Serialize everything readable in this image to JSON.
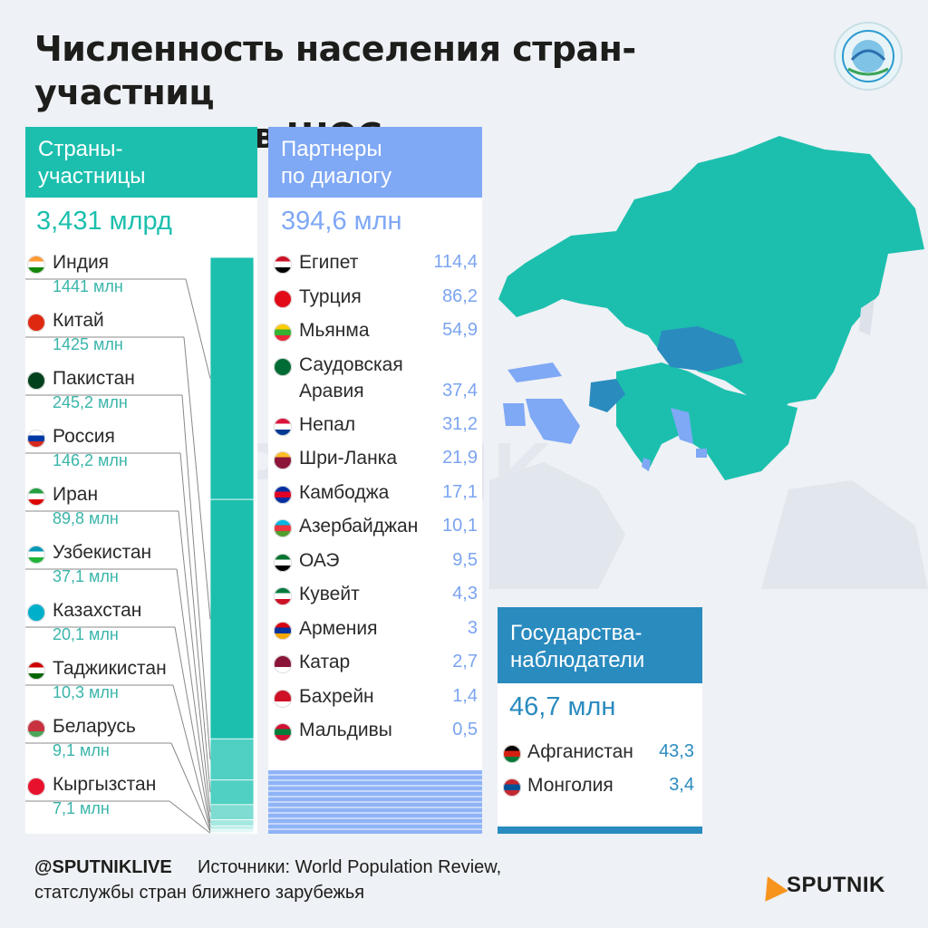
{
  "title_line1": "Численность населения стран-участниц",
  "title_line2": "и партнеров ШОС",
  "members": {
    "heading_line1": "Страны-",
    "heading_line2": "участницы",
    "total": "3,431 млрд",
    "color": "#1cbfae",
    "items": [
      {
        "name": "Индия",
        "label": "1441 млн",
        "value": 1441,
        "flag": "india-flag-icon"
      },
      {
        "name": "Китай",
        "label": "1425 млн",
        "value": 1425,
        "flag": "china-flag-icon"
      },
      {
        "name": "Пакистан",
        "label": "245,2 млн",
        "value": 245.2,
        "flag": "pakistan-flag-icon"
      },
      {
        "name": "Россия",
        "label": "146,2 млн",
        "value": 146.2,
        "flag": "russia-flag-icon"
      },
      {
        "name": "Иран",
        "label": "89,8 млн",
        "value": 89.8,
        "flag": "iran-flag-icon"
      },
      {
        "name": "Узбекистан",
        "label": "37,1 млн",
        "value": 37.1,
        "flag": "uzbekistan-flag-icon"
      },
      {
        "name": "Казахстан",
        "label": "20,1 млн",
        "value": 20.1,
        "flag": "kazakhstan-flag-icon"
      },
      {
        "name": "Таджикистан",
        "label": "10,3 млн",
        "value": 10.3,
        "flag": "tajikistan-flag-icon"
      },
      {
        "name": "Беларусь",
        "label": "9,1 млн",
        "value": 9.1,
        "flag": "belarus-flag-icon"
      },
      {
        "name": "Кыргызстан",
        "label": "7,1 млн",
        "value": 7.1,
        "flag": "kyrgyzstan-flag-icon"
      }
    ]
  },
  "partners": {
    "heading_line1": "Партнеры",
    "heading_line2": "по диалогу",
    "total": "394,6 млн",
    "color": "#7fa8f5",
    "items": [
      {
        "name": "Египет",
        "label": "114,4",
        "flag": "egypt-flag-icon"
      },
      {
        "name": "Турция",
        "label": "86,2",
        "flag": "turkey-flag-icon"
      },
      {
        "name": "Мьянма",
        "label": "54,9",
        "flag": "myanmar-flag-icon"
      },
      {
        "name": "Саудовская",
        "name2": "Аравия",
        "label": "37,4",
        "flag": "saudi-arabia-flag-icon"
      },
      {
        "name": "Непал",
        "label": "31,2",
        "flag": "nepal-flag-icon"
      },
      {
        "name": "Шри-Ланка",
        "label": "21,9",
        "flag": "sri-lanka-flag-icon"
      },
      {
        "name": "Камбоджа",
        "label": "17,1",
        "flag": "cambodia-flag-icon"
      },
      {
        "name": "Азербайджан",
        "label": "10,1",
        "flag": "azerbaijan-flag-icon"
      },
      {
        "name": "ОАЭ",
        "label": "9,5",
        "flag": "uae-flag-icon"
      },
      {
        "name": "Кувейт",
        "label": "4,3",
        "flag": "kuwait-flag-icon"
      },
      {
        "name": "Армения",
        "label": "3",
        "flag": "armenia-flag-icon"
      },
      {
        "name": "Катар",
        "label": "2,7",
        "flag": "qatar-flag-icon"
      },
      {
        "name": "Бахрейн",
        "label": "1,4",
        "flag": "bahrain-flag-icon"
      },
      {
        "name": "Мальдивы",
        "label": "0,5",
        "flag": "maldives-flag-icon"
      }
    ]
  },
  "observers": {
    "heading_line1": "Государства-",
    "heading_line2": "наблюдатели",
    "total": "46,7 млн",
    "color": "#2a8bbf",
    "items": [
      {
        "name": "Афганистан",
        "label": "43,3",
        "flag": "afghanistan-flag-icon"
      },
      {
        "name": "Монголия",
        "label": "3,4",
        "flag": "mongolia-flag-icon"
      }
    ]
  },
  "chart_data": {
    "type": "bar",
    "title": "Численность населения стран-участниц и партнеров ШОС",
    "categories": [
      "Индия",
      "Китай",
      "Пакистан",
      "Россия",
      "Иран",
      "Узбекистан",
      "Казахстан",
      "Таджикистан",
      "Беларусь",
      "Кыргызстан"
    ],
    "values": [
      1441,
      1425,
      245.2,
      146.2,
      89.8,
      37.1,
      20.1,
      10.3,
      9.1,
      7.1
    ],
    "unit": "млн",
    "partners_values": [
      114.4,
      86.2,
      54.9,
      37.4,
      31.2,
      21.9,
      17.1,
      10.1,
      9.5,
      4.3,
      3,
      2.7,
      1.4,
      0.5
    ],
    "observers_values": [
      43.3,
      3.4
    ]
  },
  "footer": {
    "handle": "@SPUTNIKLIVE",
    "source_line1": "Источники: World Population Review,",
    "source_line2": "статслужбы стран ближнего зарубежья",
    "brand": "SPUTNIK"
  },
  "watermark": "SPUTNIK"
}
